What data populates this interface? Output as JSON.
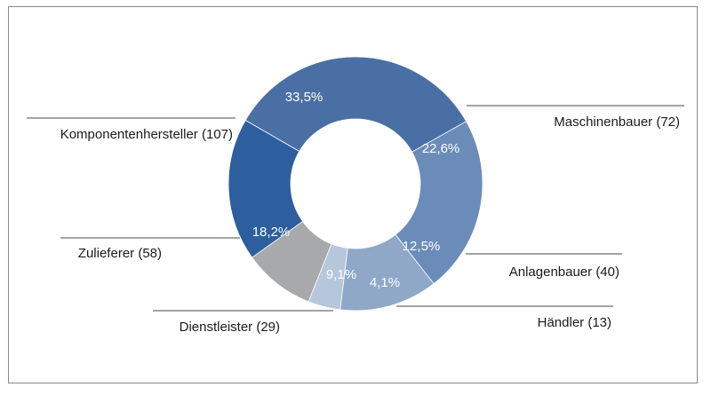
{
  "chart_data": {
    "type": "pie",
    "variant": "donut",
    "slices": [
      {
        "label": "Komponentenhersteller (107)",
        "value": 33.5,
        "value_label": "33,5%",
        "color": "#4a6fa5"
      },
      {
        "label": "Maschinenbauer (72)",
        "value": 22.6,
        "value_label": "22,6%",
        "color": "#6b8cb8"
      },
      {
        "label": "Anlagenbauer (40)",
        "value": 12.5,
        "value_label": "12,5%",
        "color": "#8fa8c8"
      },
      {
        "label": "Händler (13)",
        "value": 4.1,
        "value_label": "4,1%",
        "color": "#b6c6db"
      },
      {
        "label": "Dienstleister (29)",
        "value": 9.1,
        "value_label": "9,1%",
        "color": "#a8a9ab"
      },
      {
        "label": "Zulieferer (58)",
        "value": 18.2,
        "value_label": "18,2%",
        "color": "#2d5f9e"
      }
    ]
  }
}
